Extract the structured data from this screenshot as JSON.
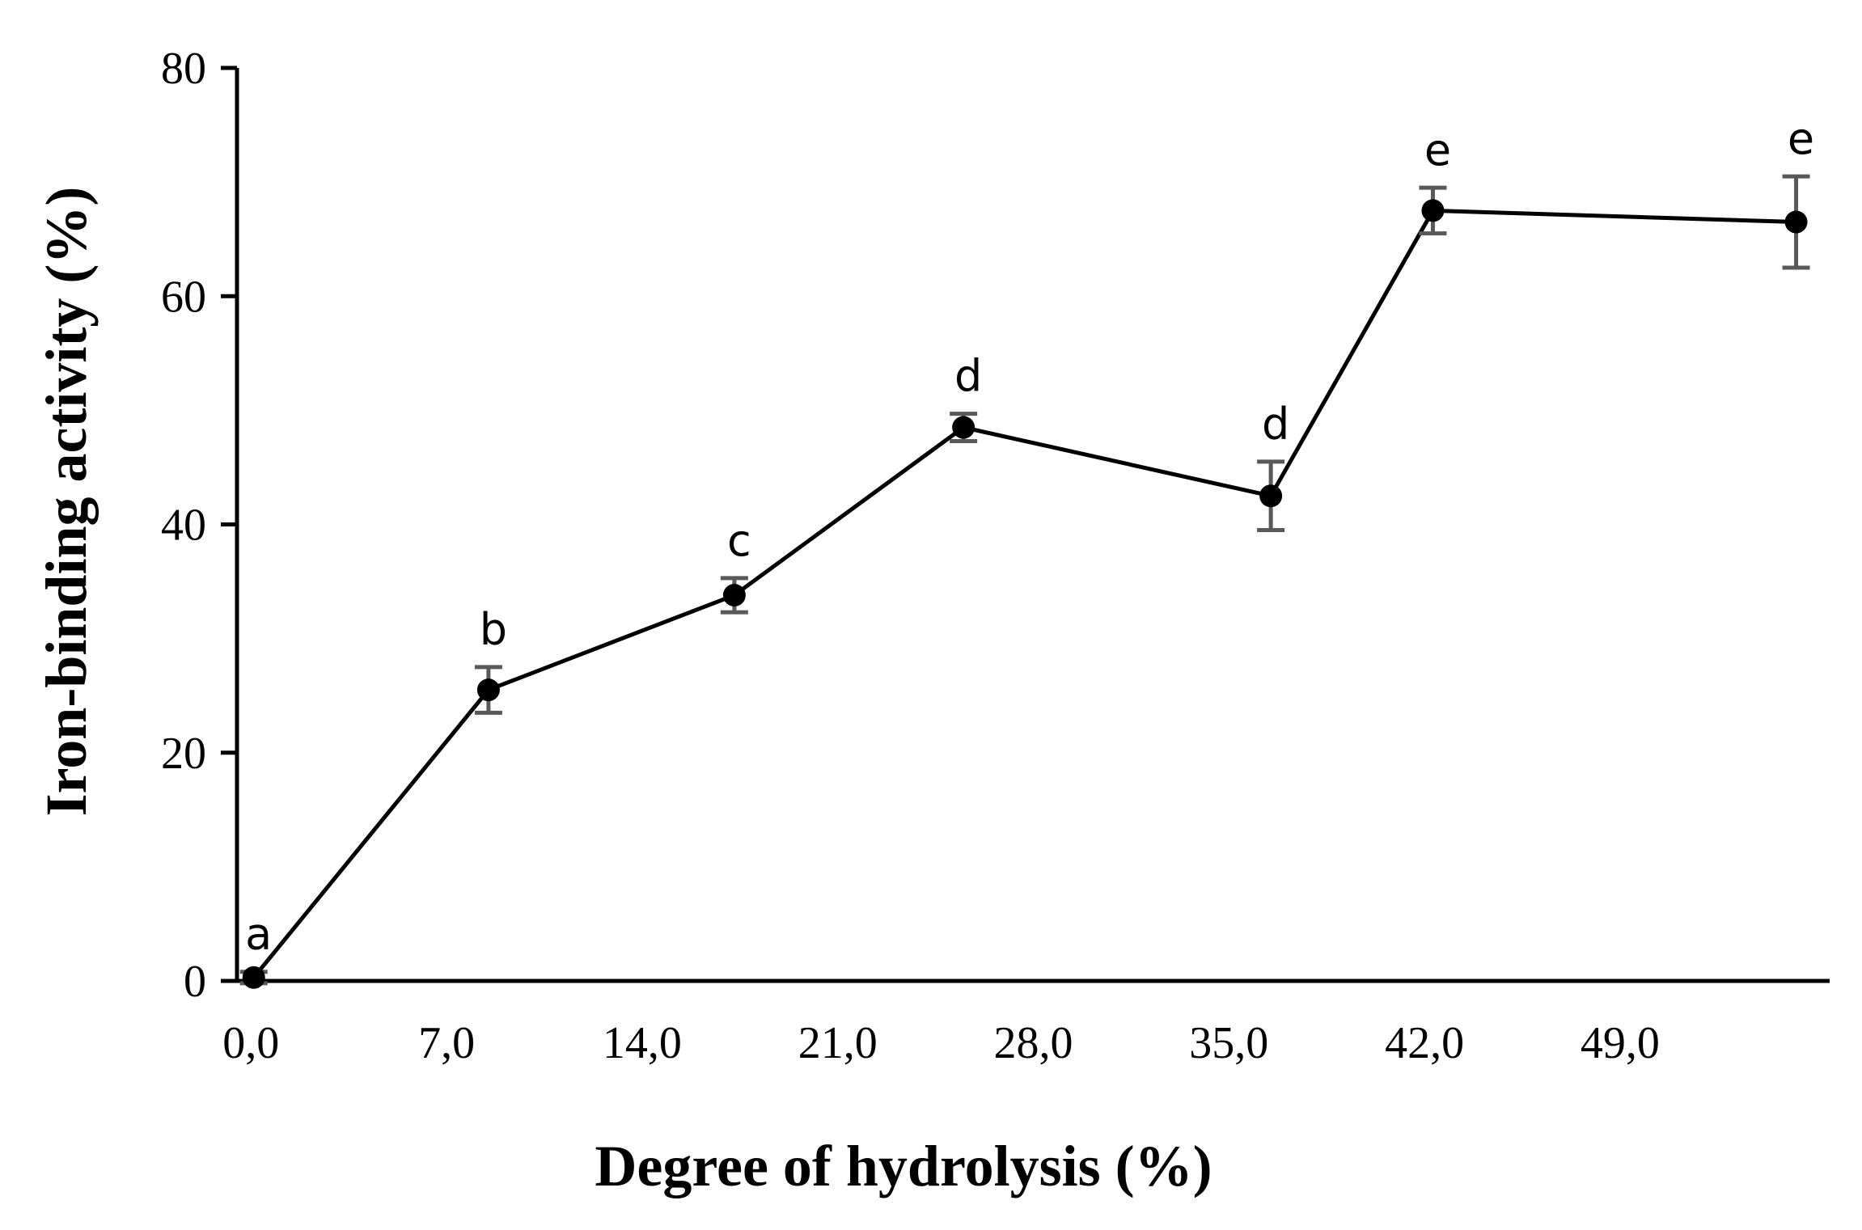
{
  "chart_data": {
    "type": "line",
    "xlabel": "Degree of hydrolysis (%)",
    "ylabel": "Iron-binding activity (%)",
    "xlim": [
      -0.5,
      56.5
    ],
    "ylim": [
      0,
      80
    ],
    "x_ticks": [
      0,
      7,
      14,
      21,
      28,
      35,
      42,
      49
    ],
    "x_tick_labels": [
      "0,0",
      "7,0",
      "14,0",
      "21,0",
      "28,0",
      "35,0",
      "42,0",
      "49,0"
    ],
    "y_ticks": [
      0,
      20,
      40,
      60,
      80
    ],
    "y_tick_labels": [
      "0",
      "20",
      "40",
      "60",
      "80"
    ],
    "grid": false,
    "legend": "none",
    "line_color": "#000000",
    "errorbar_color": "#595959",
    "series": [
      {
        "points": [
          {
            "x": 0.1,
            "y": 0.3,
            "err": 0.5,
            "label": "a"
          },
          {
            "x": 8.5,
            "y": 25.5,
            "err": 2.0,
            "label": "b"
          },
          {
            "x": 17.3,
            "y": 33.8,
            "err": 1.5,
            "label": "c"
          },
          {
            "x": 25.5,
            "y": 48.5,
            "err": 1.2,
            "label": "d"
          },
          {
            "x": 36.5,
            "y": 42.5,
            "err": 3.0,
            "label": "d"
          },
          {
            "x": 42.3,
            "y": 67.5,
            "err": 2.0,
            "label": "e"
          },
          {
            "x": 55.3,
            "y": 66.5,
            "err": 4.0,
            "label": "e"
          }
        ]
      }
    ]
  }
}
